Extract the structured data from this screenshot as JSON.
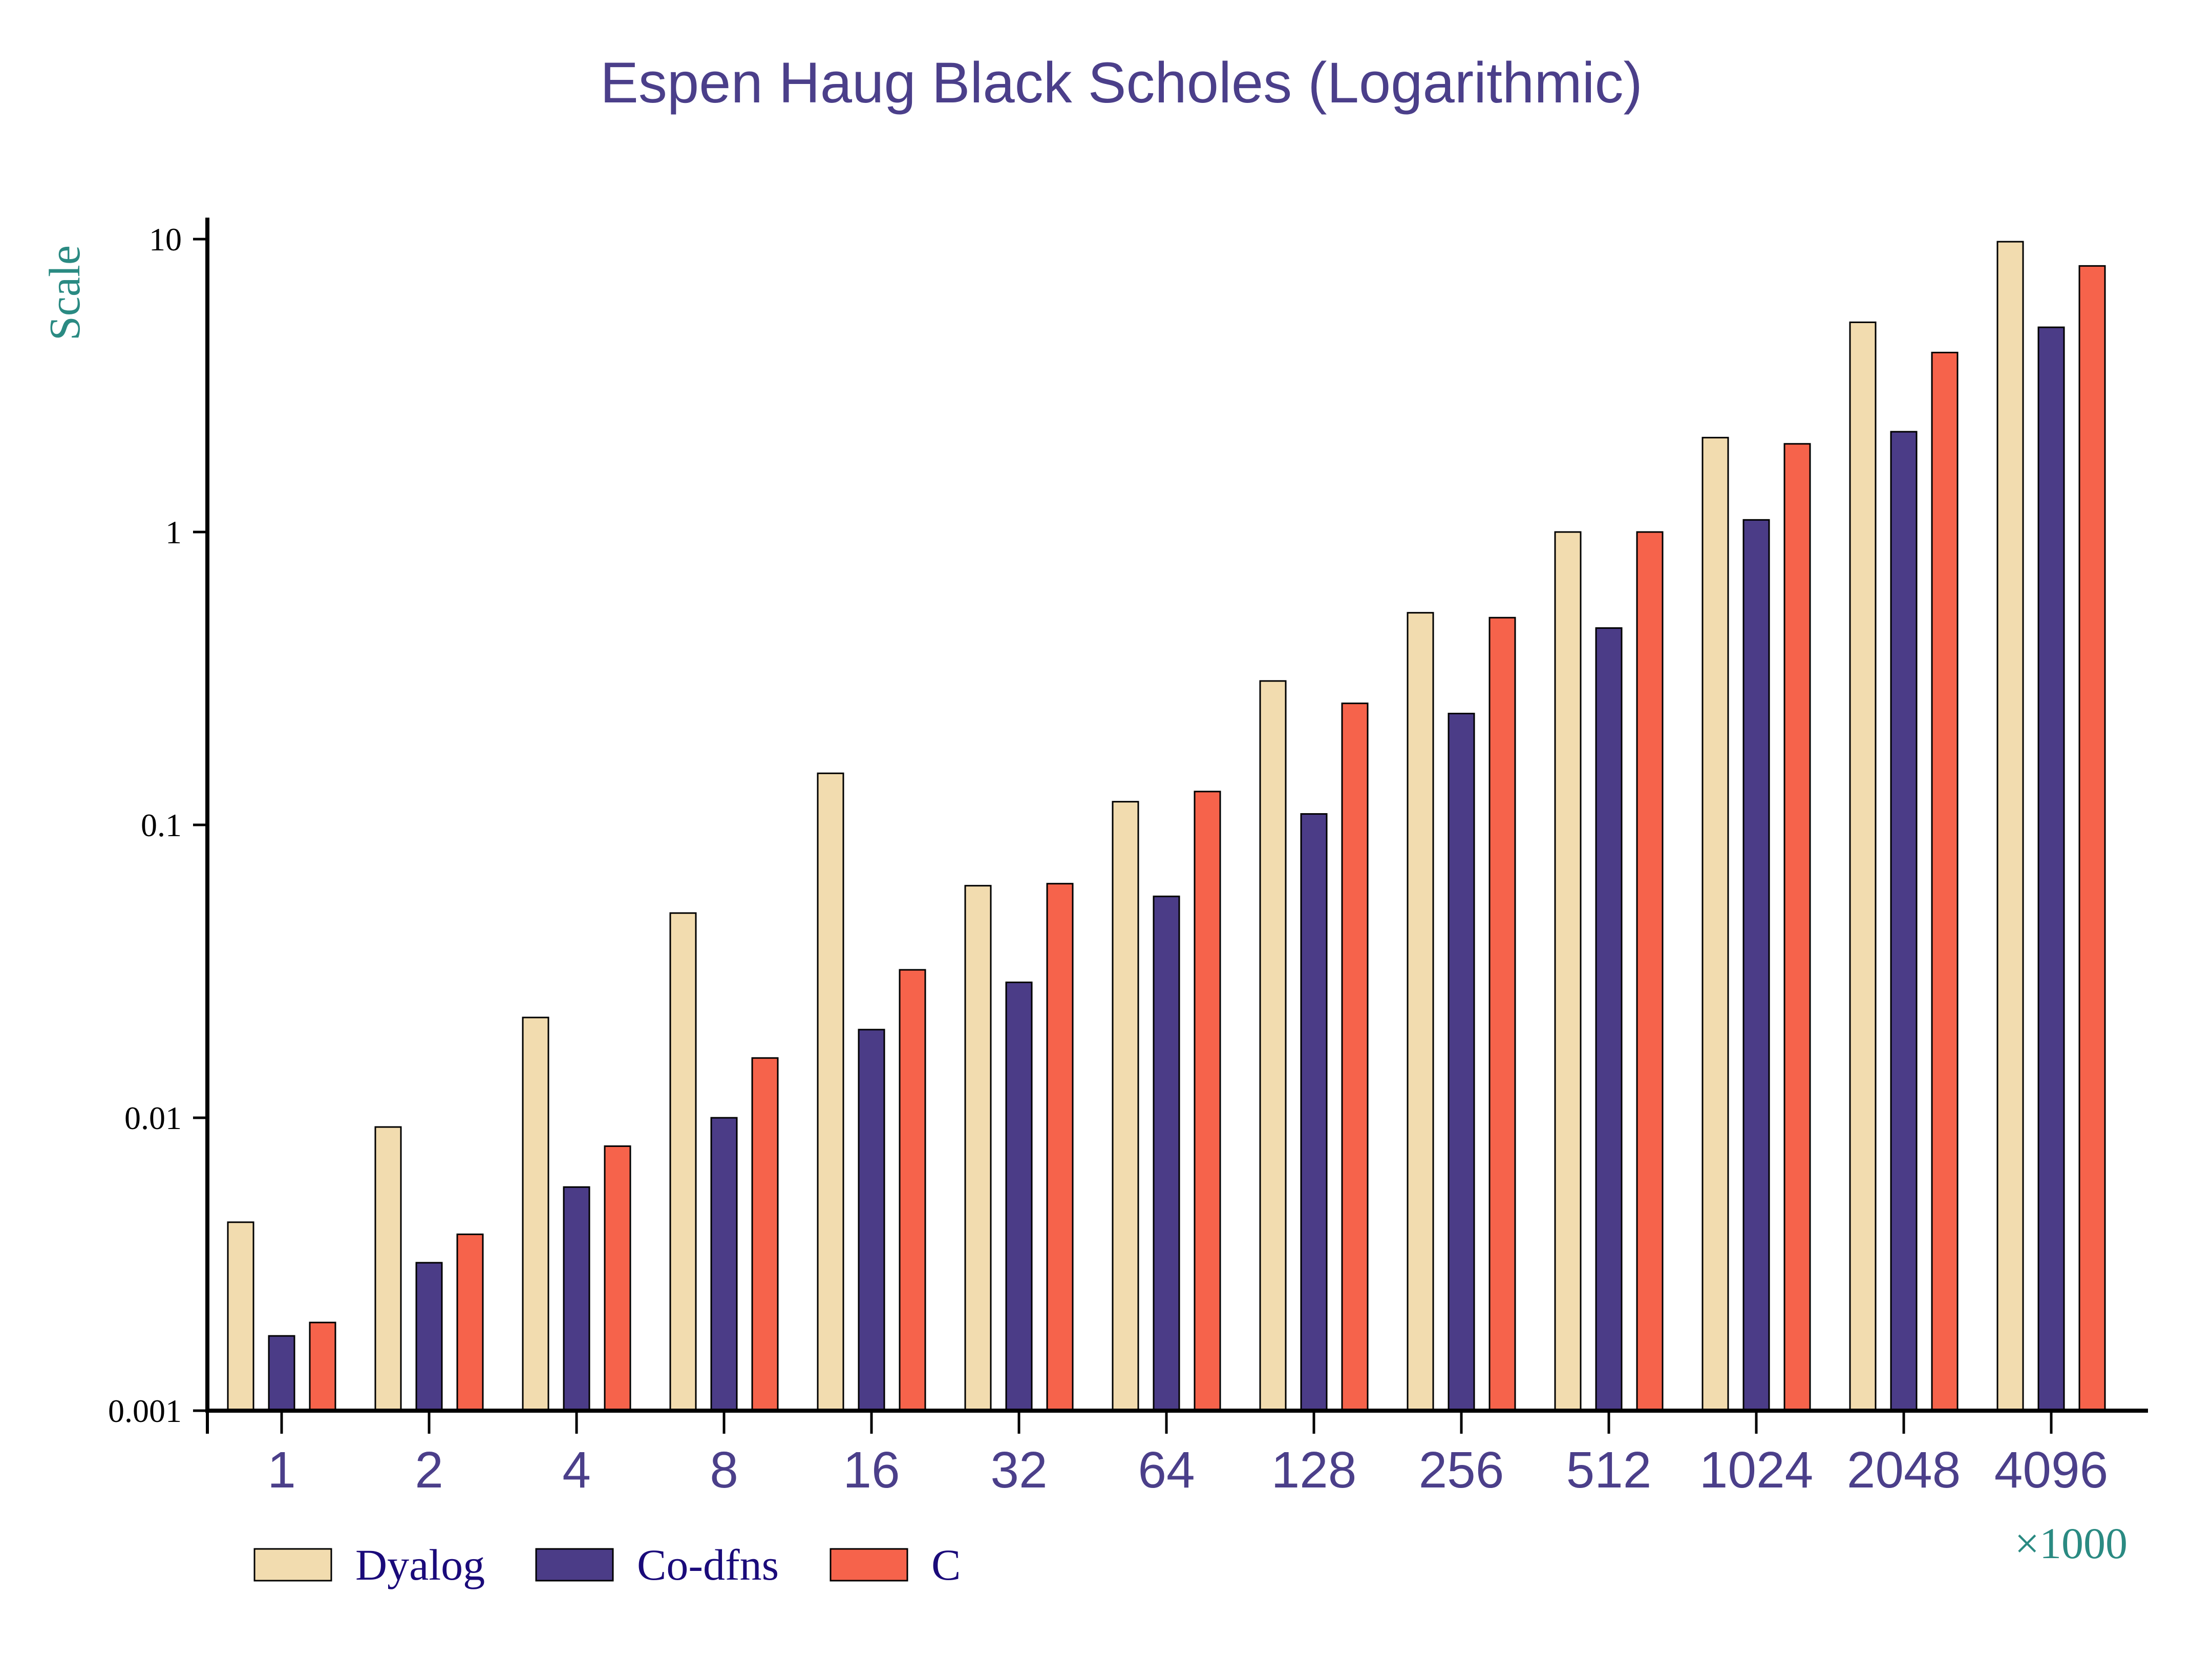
{
  "chart_data": {
    "type": "bar",
    "title": "Espen Haug Black Scholes (Logarithmic)",
    "ylabel": "Scale",
    "xlabel": "",
    "x_multiplier_label": "×1000",
    "yscale": "log",
    "ylim": [
      0.001,
      10
    ],
    "ytick_labels": [
      "0.001",
      "0.01",
      "0.1",
      "1",
      "10"
    ],
    "categories": [
      "1",
      "2",
      "4",
      "8",
      "16",
      "32",
      "64",
      "128",
      "256",
      "512",
      "1024",
      "2048",
      "4096"
    ],
    "series": [
      {
        "name": "Dyalog",
        "color": "#f2dcaf",
        "values": [
          0.0044,
          0.0093,
          0.022,
          0.05,
          0.15,
          0.062,
          0.12,
          0.31,
          0.53,
          1.0,
          2.1,
          5.2,
          9.8
        ]
      },
      {
        "name": "Co-dfns",
        "color": "#4b3c87",
        "values": [
          0.0018,
          0.0032,
          0.0058,
          0.01,
          0.02,
          0.029,
          0.057,
          0.109,
          0.24,
          0.47,
          1.1,
          2.2,
          5.0
        ]
      },
      {
        "name": "C",
        "color": "#f6634b",
        "values": [
          0.002,
          0.004,
          0.008,
          0.016,
          0.032,
          0.063,
          0.13,
          0.26,
          0.51,
          1.0,
          2.0,
          4.1,
          8.1
        ]
      }
    ],
    "legend_position": "bottom-left",
    "grid": false
  }
}
